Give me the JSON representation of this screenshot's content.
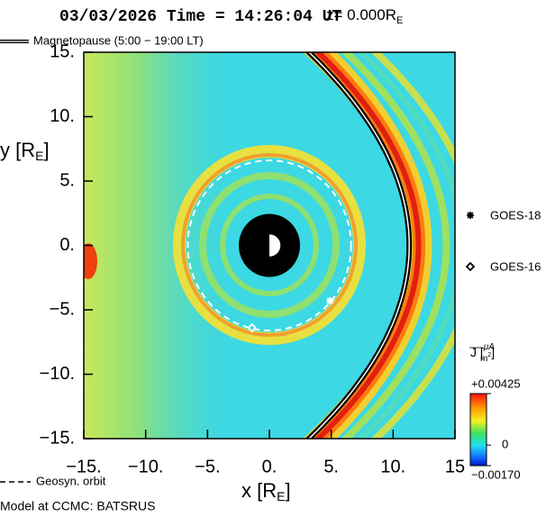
{
  "chart_data": {
    "type": "scatter",
    "title": "03/03/2026 Time = 14:26:04 UT",
    "z_label": "z= 0.000R",
    "z_label_sub": "E",
    "xlabel": "x [R",
    "xlabel_sub": "E",
    "xlabel_end": "]",
    "ylabel": "y [R",
    "ylabel_sub": "E",
    "ylabel_end": "]",
    "xlim": [
      -15,
      15
    ],
    "ylim": [
      -15,
      15
    ],
    "xticks": [
      {
        "value": -15,
        "label": "−15."
      },
      {
        "value": -10,
        "label": "−10."
      },
      {
        "value": -5,
        "label": "−5."
      },
      {
        "value": 0,
        "label": "0."
      },
      {
        "value": 5,
        "label": "5."
      },
      {
        "value": 10,
        "label": "10."
      },
      {
        "value": 15,
        "label": "15"
      }
    ],
    "yticks": [
      {
        "value": 15,
        "label": "15."
      },
      {
        "value": 10,
        "label": "10."
      },
      {
        "value": 5,
        "label": "5."
      },
      {
        "value": 0,
        "label": "0."
      },
      {
        "value": -5,
        "label": "−5."
      },
      {
        "value": -10,
        "label": "−10."
      },
      {
        "value": -15,
        "label": "−15."
      }
    ],
    "series": [
      {
        "name": "GOES-18",
        "marker": "star",
        "color": "#ffffff",
        "x": [
          4.9
        ],
        "y": [
          -4.3
        ]
      },
      {
        "name": "GOES-16",
        "marker": "diamond",
        "color": "#ffffff",
        "x": [
          -1.4
        ],
        "y": [
          -6.4
        ]
      }
    ],
    "legend_lines": [
      "Magnetopause (5:00 − 19:00 LT)",
      "Geosyn. orbit"
    ],
    "colorbar": {
      "label": "J [",
      "label_num": "μA",
      "label_den": "m",
      "label_exp": "2",
      "label_end": "]",
      "clim": [
        -0.0017,
        0.00425
      ],
      "ticks": [
        {
          "value": 0.00425,
          "label": "+0.00425"
        },
        0,
        {
          "value": -0.0017,
          "label": "−0.00170"
        }
      ]
    },
    "footer": "Model at CCMC: BATSRUS"
  }
}
